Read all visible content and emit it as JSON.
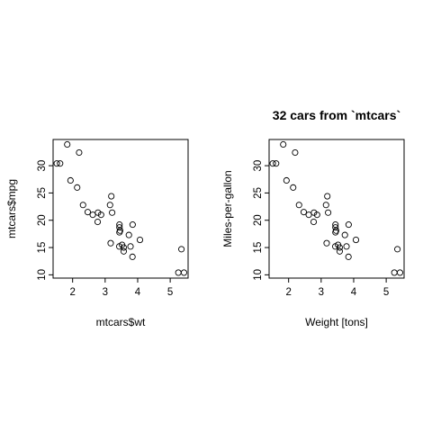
{
  "chart_data": [
    {
      "type": "scatter",
      "title": "",
      "xlabel": "mtcars$wt",
      "ylabel": "mtcars$mpg",
      "xlim": [
        1.4,
        5.55
      ],
      "ylim": [
        9.4,
        34.8
      ],
      "xticks": [
        2,
        3,
        4,
        5
      ],
      "yticks": [
        10,
        15,
        20,
        25,
        30
      ],
      "grid": false,
      "points": [
        {
          "x": 2.62,
          "y": 21.0
        },
        {
          "x": 2.875,
          "y": 21.0
        },
        {
          "x": 2.32,
          "y": 22.8
        },
        {
          "x": 3.215,
          "y": 21.4
        },
        {
          "x": 3.44,
          "y": 18.7
        },
        {
          "x": 3.46,
          "y": 18.1
        },
        {
          "x": 3.57,
          "y": 14.3
        },
        {
          "x": 3.19,
          "y": 24.4
        },
        {
          "x": 3.15,
          "y": 22.8
        },
        {
          "x": 3.44,
          "y": 19.2
        },
        {
          "x": 3.44,
          "y": 17.8
        },
        {
          "x": 4.07,
          "y": 16.4
        },
        {
          "x": 3.73,
          "y": 17.3
        },
        {
          "x": 3.78,
          "y": 15.2
        },
        {
          "x": 5.25,
          "y": 10.4
        },
        {
          "x": 5.424,
          "y": 10.4
        },
        {
          "x": 5.345,
          "y": 14.7
        },
        {
          "x": 2.2,
          "y": 32.4
        },
        {
          "x": 1.615,
          "y": 30.4
        },
        {
          "x": 1.835,
          "y": 33.9
        },
        {
          "x": 2.465,
          "y": 21.5
        },
        {
          "x": 3.52,
          "y": 15.5
        },
        {
          "x": 3.435,
          "y": 15.2
        },
        {
          "x": 3.84,
          "y": 13.3
        },
        {
          "x": 3.845,
          "y": 19.2
        },
        {
          "x": 1.935,
          "y": 27.3
        },
        {
          "x": 2.14,
          "y": 26.0
        },
        {
          "x": 1.513,
          "y": 30.4
        },
        {
          "x": 3.17,
          "y": 15.8
        },
        {
          "x": 2.77,
          "y": 19.7
        },
        {
          "x": 3.57,
          "y": 15.0
        },
        {
          "x": 2.78,
          "y": 21.4
        }
      ]
    },
    {
      "type": "scatter",
      "title": "32 cars from `mtcars`",
      "xlabel": "Weight [tons]",
      "ylabel": "Miles-per-gallon",
      "xlim": [
        1.4,
        5.55
      ],
      "ylim": [
        9.4,
        34.8
      ],
      "xticks": [
        2,
        3,
        4,
        5
      ],
      "yticks": [
        10,
        15,
        20,
        25,
        30
      ],
      "grid": false,
      "points": [
        {
          "x": 2.62,
          "y": 21.0
        },
        {
          "x": 2.875,
          "y": 21.0
        },
        {
          "x": 2.32,
          "y": 22.8
        },
        {
          "x": 3.215,
          "y": 21.4
        },
        {
          "x": 3.44,
          "y": 18.7
        },
        {
          "x": 3.46,
          "y": 18.1
        },
        {
          "x": 3.57,
          "y": 14.3
        },
        {
          "x": 3.19,
          "y": 24.4
        },
        {
          "x": 3.15,
          "y": 22.8
        },
        {
          "x": 3.44,
          "y": 19.2
        },
        {
          "x": 3.44,
          "y": 17.8
        },
        {
          "x": 4.07,
          "y": 16.4
        },
        {
          "x": 3.73,
          "y": 17.3
        },
        {
          "x": 3.78,
          "y": 15.2
        },
        {
          "x": 5.25,
          "y": 10.4
        },
        {
          "x": 5.424,
          "y": 10.4
        },
        {
          "x": 5.345,
          "y": 14.7
        },
        {
          "x": 2.2,
          "y": 32.4
        },
        {
          "x": 1.615,
          "y": 30.4
        },
        {
          "x": 1.835,
          "y": 33.9
        },
        {
          "x": 2.465,
          "y": 21.5
        },
        {
          "x": 3.52,
          "y": 15.5
        },
        {
          "x": 3.435,
          "y": 15.2
        },
        {
          "x": 3.84,
          "y": 13.3
        },
        {
          "x": 3.845,
          "y": 19.2
        },
        {
          "x": 1.935,
          "y": 27.3
        },
        {
          "x": 2.14,
          "y": 26.0
        },
        {
          "x": 1.513,
          "y": 30.4
        },
        {
          "x": 3.17,
          "y": 15.8
        },
        {
          "x": 2.77,
          "y": 19.7
        },
        {
          "x": 3.57,
          "y": 15.0
        },
        {
          "x": 2.78,
          "y": 21.4
        }
      ]
    }
  ]
}
